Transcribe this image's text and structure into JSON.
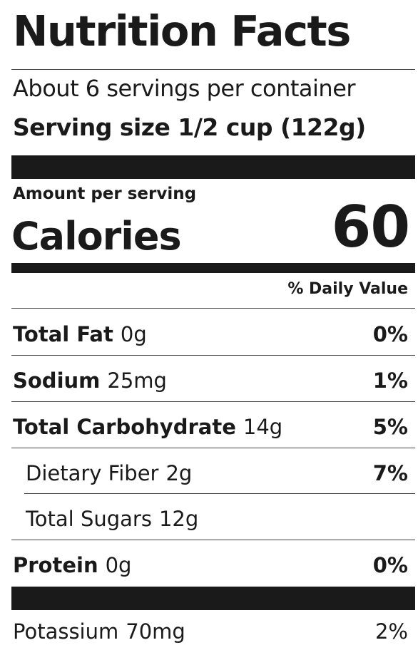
{
  "label": {
    "title": "Nutrition Facts",
    "servings_per_container": "About 6 servings per container",
    "serving_size": "Serving size 1/2 cup (122g)",
    "amount_per_serving": "Amount per serving",
    "calories_label": "Calories",
    "calories_value": "60",
    "daily_value_header": "% Daily Value",
    "nutrients": [
      {
        "name": "Total Fat",
        "amount": "0g",
        "dv": "0%"
      },
      {
        "name": "Sodium",
        "amount": "25mg",
        "dv": "1%"
      },
      {
        "name": "Total Carbohydrate",
        "amount": "14g",
        "dv": "5%"
      },
      {
        "name": "Dietary Fiber",
        "amount": "2g",
        "dv": "7%"
      },
      {
        "name": "Total Sugars",
        "amount": "12g",
        "dv": ""
      },
      {
        "name": "Protein",
        "amount": "0g",
        "dv": "0%"
      }
    ],
    "vitamins": [
      {
        "name": "Potassium",
        "amount": "70mg",
        "dv": "2%"
      }
    ]
  }
}
